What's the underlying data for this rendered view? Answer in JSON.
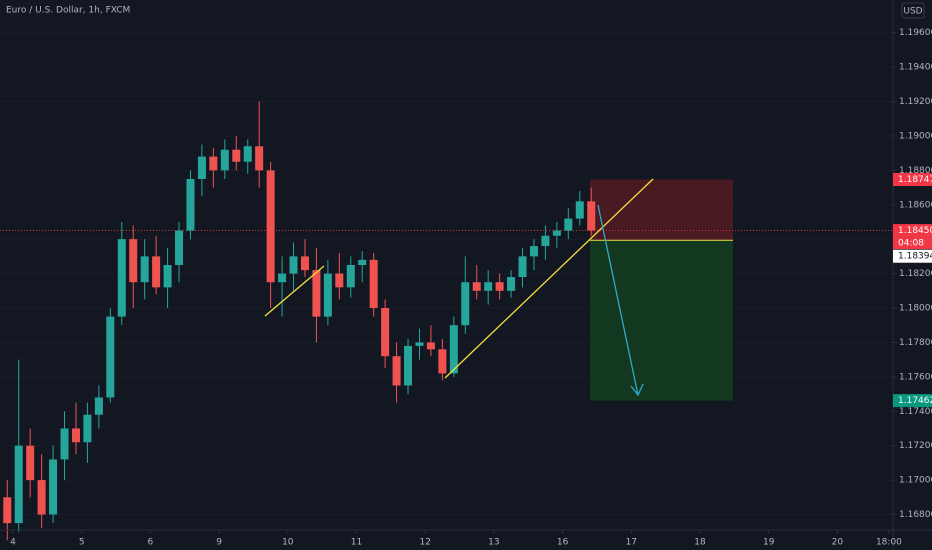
{
  "chart_data": {
    "type": "candlestick",
    "title": "Euro / U.S. Dollar, 1h, FXCM",
    "currency": "USD",
    "categories": [
      "4",
      "5",
      "6",
      "9",
      "10",
      "11",
      "12",
      "13",
      "16",
      "17",
      "18",
      "19",
      "20",
      "18:00"
    ],
    "open": [
      1.169,
      1.1675,
      1.172,
      1.17,
      1.168,
      1.1712,
      1.173,
      1.1722,
      1.1738,
      1.1748,
      1.1795,
      1.184,
      1.1815,
      1.183,
      1.1812,
      1.1825,
      1.1845,
      1.1875,
      1.1888,
      1.188,
      1.1892,
      1.1885,
      1.1894,
      1.188,
      1.1815,
      1.182,
      1.183,
      1.1822,
      1.1795,
      1.182,
      1.1812,
      1.1825,
      1.1828,
      1.18,
      1.1772,
      1.1755,
      1.1778,
      1.178,
      1.1776,
      1.1762,
      1.179,
      1.1815,
      1.181,
      1.1815,
      1.181,
      1.1818,
      1.183,
      1.1836,
      1.1842,
      1.1845,
      1.1852,
      1.1862
    ],
    "high": [
      1.17,
      1.177,
      1.173,
      1.1715,
      1.172,
      1.174,
      1.1745,
      1.1745,
      1.1755,
      1.18,
      1.185,
      1.1848,
      1.184,
      1.1842,
      1.1835,
      1.185,
      1.188,
      1.1895,
      1.1893,
      1.1898,
      1.19,
      1.1898,
      1.192,
      1.1885,
      1.183,
      1.1838,
      1.184,
      1.1835,
      1.1828,
      1.1832,
      1.183,
      1.1833,
      1.1832,
      1.1805,
      1.178,
      1.1782,
      1.1788,
      1.179,
      1.1782,
      1.1795,
      1.183,
      1.1825,
      1.1822,
      1.182,
      1.1822,
      1.1835,
      1.184,
      1.1848,
      1.185,
      1.1858,
      1.1868,
      1.187
    ],
    "low": [
      1.1665,
      1.167,
      1.169,
      1.1672,
      1.1675,
      1.17,
      1.1715,
      1.171,
      1.173,
      1.1745,
      1.179,
      1.18,
      1.1805,
      1.1808,
      1.18,
      1.1815,
      1.184,
      1.1865,
      1.187,
      1.1875,
      1.188,
      1.1878,
      1.187,
      1.18,
      1.1795,
      1.181,
      1.1818,
      1.178,
      1.179,
      1.1805,
      1.1806,
      1.1815,
      1.1795,
      1.1765,
      1.1745,
      1.175,
      1.177,
      1.1772,
      1.1758,
      1.176,
      1.1785,
      1.1805,
      1.1802,
      1.1805,
      1.1806,
      1.1812,
      1.1822,
      1.1828,
      1.1835,
      1.184,
      1.1848,
      1.1842
    ],
    "close": [
      1.1675,
      1.172,
      1.17,
      1.168,
      1.1712,
      1.173,
      1.1722,
      1.1738,
      1.1748,
      1.1795,
      1.184,
      1.1815,
      1.183,
      1.1812,
      1.1825,
      1.1845,
      1.1875,
      1.1888,
      1.188,
      1.1892,
      1.1885,
      1.1894,
      1.188,
      1.1815,
      1.182,
      1.183,
      1.1822,
      1.1795,
      1.182,
      1.1812,
      1.1825,
      1.1828,
      1.18,
      1.1772,
      1.1755,
      1.1778,
      1.178,
      1.1776,
      1.1762,
      1.179,
      1.1815,
      1.181,
      1.1815,
      1.181,
      1.1818,
      1.183,
      1.1836,
      1.1842,
      1.1845,
      1.1852,
      1.1862,
      1.1845
    ],
    "up_color": "#26a69a",
    "down_color": "#ef5350",
    "ylim": [
      1.1671,
      1.1979
    ],
    "yticks": [
      {
        "value": 1.168,
        "label": "1.16800"
      },
      {
        "value": 1.17,
        "label": "1.17000"
      },
      {
        "value": 1.172,
        "label": "1.17200"
      },
      {
        "value": 1.174,
        "label": "1.17400"
      },
      {
        "value": 1.176,
        "label": "1.17600"
      },
      {
        "value": 1.178,
        "label": "1.17800"
      },
      {
        "value": 1.18,
        "label": "1.18000"
      },
      {
        "value": 1.182,
        "label": "1.18200"
      },
      {
        "value": 1.184,
        "label": "1.18400"
      },
      {
        "value": 1.186,
        "label": "1.18600"
      },
      {
        "value": 1.188,
        "label": "1.18800"
      },
      {
        "value": 1.19,
        "label": "1.19000"
      },
      {
        "value": 1.192,
        "label": "1.19200"
      },
      {
        "value": 1.194,
        "label": "1.19400"
      },
      {
        "value": 1.196,
        "label": "1.19600"
      }
    ],
    "last_price": {
      "value": 1.1845,
      "label": "1.18450",
      "countdown": "04:08",
      "color": "#f23645"
    },
    "position": {
      "stop": {
        "value": 1.18747,
        "label": "1.18747"
      },
      "entry": {
        "value": 1.18394,
        "label": "1.18394"
      },
      "target": {
        "value": 1.17462,
        "label": "1.17462"
      },
      "stop_color": "#4a1b22",
      "target_color": "#123b20"
    }
  }
}
